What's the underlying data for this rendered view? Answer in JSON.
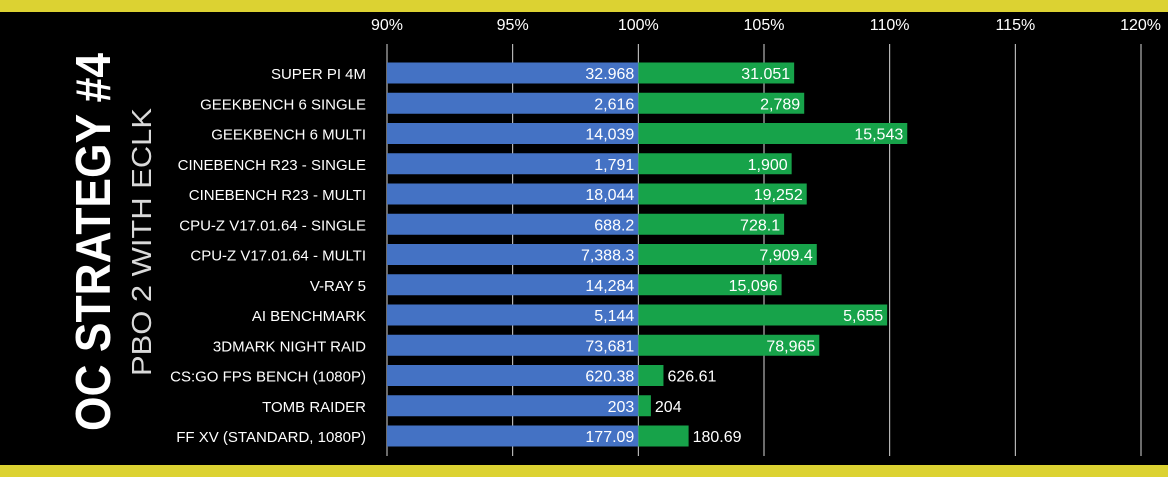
{
  "title": "OC STRATEGY #4",
  "subtitle": "PBO 2 WITH ECLK",
  "colors": {
    "background": "#000000",
    "band": "#dcd232",
    "baseline_bar": "#4472c4",
    "oc_bar": "#17a34a",
    "grid": "#ffffff",
    "text": "#ffffff",
    "title": "#ffffff",
    "subtitle": "#d9d9d9"
  },
  "chart_data": {
    "type": "bar",
    "orientation": "horizontal",
    "xlim": [
      90,
      120
    ],
    "x_ticks": [
      "90%",
      "95%",
      "100%",
      "105%",
      "110%",
      "115%",
      "120%"
    ],
    "x_tick_values": [
      90,
      95,
      100,
      105,
      110,
      115,
      120
    ],
    "grid": true,
    "baseline_percent": 100,
    "categories": [
      "SUPER PI 4M",
      "GEEKBENCH 6 SINGLE",
      "GEEKBENCH 6 MULTI",
      "CINEBENCH R23 - SINGLE",
      "CINEBENCH R23 - MULTI",
      "CPU-Z V17.01.64 - SINGLE",
      "CPU-Z V17.01.64 - MULTI",
      "V-RAY 5",
      "AI BENCHMARK",
      "3DMARK NIGHT RAID",
      "CS:GO FPS BENCH (1080P)",
      "TOMB RAIDER",
      "FF XV (STANDARD, 1080P)"
    ],
    "series": [
      {
        "labels": [
          "32.968",
          "2,616",
          "14,039",
          "1,791",
          "18,044",
          "688.2",
          "7,388.3",
          "14,284",
          "5,144",
          "73,681",
          "620.38",
          "203",
          "177.09"
        ],
        "percent": [
          100,
          100,
          100,
          100,
          100,
          100,
          100,
          100,
          100,
          100,
          100,
          100,
          100
        ]
      },
      {
        "labels": [
          "31.051",
          "2,789",
          "15,543",
          "1,900",
          "19,252",
          "728.1",
          "7,909.4",
          "15,096",
          "5,655",
          "78,965",
          "626.61",
          "204",
          "180.69"
        ],
        "percent": [
          106.2,
          106.6,
          110.7,
          106.1,
          106.7,
          105.8,
          107.1,
          105.7,
          109.9,
          107.2,
          101.0,
          100.5,
          102.0
        ]
      }
    ]
  }
}
